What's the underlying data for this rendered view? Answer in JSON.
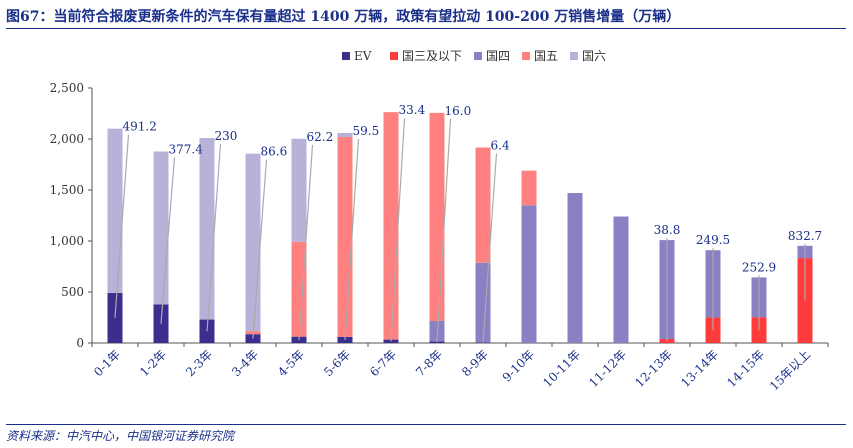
{
  "header": {
    "title": "图67：当前符合报废更新条件的汽车保有量超过 1400 万辆，政策有望拉动 100-200 万销售增量（万辆）"
  },
  "footer": {
    "source": "资料来源：中汽中心，中国银河证券研究院"
  },
  "colors": {
    "EV": "#3b2e8f",
    "国三及以下": "#ff3b3b",
    "国四": "#8a80c4",
    "国五": "#ff8080",
    "国六": "#b8b2d9"
  },
  "chart_data": {
    "type": "bar",
    "stacked": true,
    "title": "",
    "xlabel": "",
    "ylabel": "",
    "ylim": [
      0,
      2500
    ],
    "yticks": [
      "0",
      "500",
      "1,000",
      "1,500",
      "2,000",
      "2,500"
    ],
    "ytick_values": [
      0,
      500,
      1000,
      1500,
      2000,
      2500
    ],
    "legend_position": "top-center",
    "categories": [
      "0-1年",
      "1-2年",
      "2-3年",
      "3-4年",
      "4-5年",
      "5-6年",
      "6-7年",
      "7-8年",
      "8-9年",
      "9-10年",
      "10-11年",
      "11-12年",
      "12-13年",
      "13-14年",
      "14-15年",
      "15年以上"
    ],
    "series": [
      {
        "name": "EV",
        "values": [
          491.2,
          377.4,
          230,
          86.6,
          62.2,
          59.5,
          33.4,
          16.0,
          6.4,
          0,
          0,
          0,
          0,
          0,
          0,
          0
        ]
      },
      {
        "name": "国三及以下",
        "values": [
          0,
          0,
          0,
          0,
          0,
          0,
          0,
          0,
          0,
          0,
          0,
          0,
          38.8,
          249.5,
          252.9,
          832.7
        ]
      },
      {
        "name": "国四",
        "values": [
          0,
          0,
          0,
          0,
          0,
          0,
          0,
          200,
          780,
          1350,
          1470,
          1240,
          970,
          660,
          390,
          120
        ]
      },
      {
        "name": "国五",
        "values": [
          0,
          0,
          0,
          30,
          930,
          1960,
          2230,
          2040,
          1130,
          340,
          0,
          0,
          0,
          0,
          0,
          0
        ]
      },
      {
        "name": "国六",
        "values": [
          1610,
          1500,
          1780,
          1740,
          1010,
          40,
          0,
          0,
          0,
          0,
          0,
          0,
          0,
          0,
          0,
          0
        ]
      }
    ],
    "annotations": [
      {
        "category": "0-1年",
        "text": "491.2"
      },
      {
        "category": "1-2年",
        "text": "377.4"
      },
      {
        "category": "2-3年",
        "text": "230"
      },
      {
        "category": "3-4年",
        "text": "86.6"
      },
      {
        "category": "4-5年",
        "text": "62.2"
      },
      {
        "category": "5-6年",
        "text": "59.5"
      },
      {
        "category": "6-7年",
        "text": "33.4"
      },
      {
        "category": "7-8年",
        "text": "16.0"
      },
      {
        "category": "8-9年",
        "text": "6.4"
      },
      {
        "category": "12-13年",
        "text": "38.8"
      },
      {
        "category": "13-14年",
        "text": "249.5"
      },
      {
        "category": "14-15年",
        "text": "252.9"
      },
      {
        "category": "15年以上",
        "text": "832.7"
      }
    ]
  }
}
